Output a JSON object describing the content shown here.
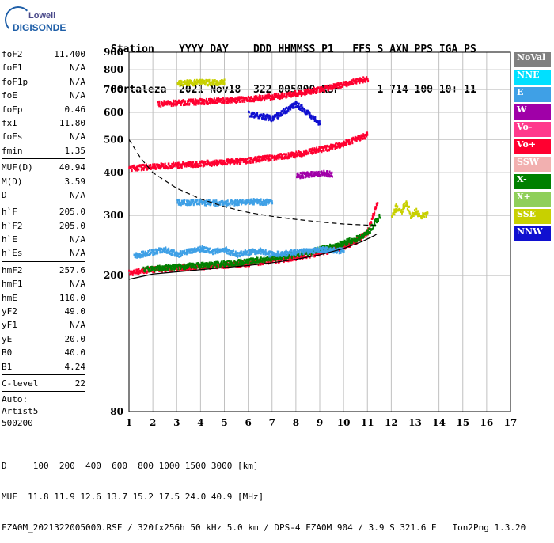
{
  "logo": {
    "line1": "Lowell",
    "line2": "DIGISONDE"
  },
  "header": {
    "line1": "Station    YYYY DAY    DDD HHMMSS P1   FFS S AXN PPS IGA PS",
    "line2": "Fortaleza  2021 Nov18  322 005000 RSF      1 714 100 10+ 11"
  },
  "params": {
    "group1": [
      {
        "k": "foF2",
        "v": "11.400"
      },
      {
        "k": "foF1",
        "v": "N/A"
      },
      {
        "k": "foF1p",
        "v": "N/A"
      },
      {
        "k": "foE",
        "v": "N/A"
      },
      {
        "k": "foEp",
        "v": "0.46"
      },
      {
        "k": "fxI",
        "v": "11.80"
      },
      {
        "k": "foEs",
        "v": "N/A"
      },
      {
        "k": "fmin",
        "v": "1.35"
      }
    ],
    "group2": [
      {
        "k": "MUF(D)",
        "v": "40.94"
      },
      {
        "k": "M(D)",
        "v": "3.59"
      },
      {
        "k": "D",
        "v": "N/A"
      }
    ],
    "group3": [
      {
        "k": "h`F",
        "v": "205.0"
      },
      {
        "k": "h`F2",
        "v": "205.0"
      },
      {
        "k": "h`E",
        "v": "N/A"
      },
      {
        "k": "h`Es",
        "v": "N/A"
      }
    ],
    "group4": [
      {
        "k": "hmF2",
        "v": "257.6"
      },
      {
        "k": "hmF1",
        "v": "N/A"
      },
      {
        "k": "hmE",
        "v": "110.0"
      },
      {
        "k": "yF2",
        "v": "49.0"
      },
      {
        "k": "yF1",
        "v": "N/A"
      },
      {
        "k": "yE",
        "v": "20.0"
      },
      {
        "k": "B0",
        "v": "40.0"
      },
      {
        "k": "B1",
        "v": "4.24"
      }
    ],
    "clevel": {
      "k": "C-level",
      "v": "22"
    },
    "auto": [
      "Auto:",
      "Artist5",
      "500200"
    ]
  },
  "legend": [
    {
      "label": "NoVal",
      "color": "#808080",
      "text": "#ffffff"
    },
    {
      "label": "NNE",
      "color": "#00e0ff",
      "text": "#ffffff"
    },
    {
      "label": "E",
      "color": "#3fa0e6",
      "text": "#ffffff"
    },
    {
      "label": "W",
      "color": "#a000a8",
      "text": "#ffffff"
    },
    {
      "label": "Vo-",
      "color": "#ff3a8c",
      "text": "#ffffff"
    },
    {
      "label": "Vo+",
      "color": "#ff0030",
      "text": "#ffffff"
    },
    {
      "label": "SSW",
      "color": "#f2b0b0",
      "text": "#ffffff"
    },
    {
      "label": "X-",
      "color": "#008000",
      "text": "#ffffff"
    },
    {
      "label": "X+",
      "color": "#8fcf5a",
      "text": "#ffffff"
    },
    {
      "label": "SSE",
      "color": "#c8d000",
      "text": "#ffffff"
    },
    {
      "label": "NNW",
      "color": "#1010d0",
      "text": "#ffffff"
    }
  ],
  "footer": {
    "line1": "D     100  200  400  600  800 1000 1500 3000 [km]",
    "line2": "MUF  11.8 11.9 12.6 13.7 15.2 17.5 24.0 40.9 [MHz]",
    "line3": "FZA0M_2021322005000.RSF / 320fx256h 50 kHz 5.0 km / DPS-4 FZA0M 904 / 3.9 S 321.6 E   Ion2Png 1.3.20"
  },
  "chart_data": {
    "type": "scatter",
    "xlim": [
      1,
      17
    ],
    "ylim": [
      80,
      900
    ],
    "y_scale": "log",
    "x_ticks": [
      1,
      2,
      3,
      4,
      5,
      6,
      7,
      8,
      9,
      10,
      11,
      12,
      13,
      14,
      15,
      16,
      17
    ],
    "y_ticks": [
      80,
      200,
      300,
      400,
      500,
      600,
      700,
      800,
      900
    ],
    "grid": true,
    "traces": [
      {
        "name": "Vo+",
        "x": [
          1.0,
          1.5,
          2.0,
          3.0,
          4.0,
          5.0,
          6.0,
          7.0,
          8.0,
          9.0,
          10.0,
          10.5,
          11.0,
          11.2,
          11.4
        ],
        "y": [
          205,
          208,
          210,
          212,
          214,
          216,
          219,
          223,
          228,
          235,
          245,
          255,
          270,
          300,
          330
        ]
      },
      {
        "name": "X-",
        "x": [
          1.6,
          2.5,
          3.5,
          4.5,
          5.5,
          6.5,
          7.5,
          8.5,
          9.5,
          10.5,
          11.0,
          11.5
        ],
        "y": [
          210,
          212,
          215,
          217,
          220,
          224,
          229,
          236,
          245,
          258,
          270,
          300
        ]
      },
      {
        "name": "Vo+",
        "x": [
          1.0,
          2.0,
          3.0,
          4.0,
          5.0,
          6.0,
          7.0,
          8.0,
          9.0,
          10.0,
          11.0
        ],
        "y": [
          415,
          420,
          424,
          428,
          432,
          438,
          446,
          456,
          470,
          490,
          520
        ]
      },
      {
        "name": "Vo+",
        "x": [
          2.2,
          3.0,
          4.0,
          5.0,
          6.0,
          7.0,
          8.0,
          9.0,
          10.0,
          11.0
        ],
        "y": [
          640,
          645,
          650,
          655,
          662,
          672,
          686,
          705,
          730,
          760
        ]
      },
      {
        "name": "E",
        "x": [
          1.2,
          1.8,
          2.5,
          3.0,
          3.5,
          4.0,
          4.5,
          5.0,
          5.5,
          6.0,
          6.5,
          7.0,
          8.0,
          9.0,
          10.0
        ],
        "y": [
          230,
          235,
          240,
          232,
          238,
          242,
          236,
          240,
          232,
          236,
          238,
          232,
          236,
          240,
          238
        ]
      },
      {
        "name": "E",
        "x": [
          3.0,
          4.0,
          5.0,
          6.0,
          7.0
        ],
        "y": [
          330,
          330,
          328,
          332,
          330
        ]
      },
      {
        "name": "SSE",
        "x": [
          12.0,
          12.2,
          12.4,
          12.6,
          12.8,
          13.0,
          13.2,
          13.5
        ],
        "y": [
          300,
          320,
          310,
          330,
          300,
          310,
          300,
          305
        ]
      },
      {
        "name": "SSE",
        "x": [
          3.0,
          3.5,
          4.0,
          4.5,
          5.0
        ],
        "y": [
          735,
          738,
          740,
          738,
          742
        ]
      },
      {
        "name": "W",
        "x": [
          8.0,
          8.5,
          9.0,
          9.5
        ],
        "y": [
          395,
          398,
          402,
          398
        ]
      },
      {
        "name": "NNW",
        "x": [
          6.0,
          7.0,
          8.0,
          9.0
        ],
        "y": [
          600,
          580,
          640,
          560
        ]
      }
    ],
    "profile_curve": {
      "x": [
        1.0,
        2,
        3,
        4,
        5,
        6,
        7,
        8,
        9,
        10,
        10.8,
        11.3,
        11.4
      ],
      "y": [
        195,
        202,
        205,
        208,
        211,
        214,
        218,
        223,
        230,
        240,
        252,
        262,
        265
      ]
    },
    "muf_curve": {
      "x": [
        1.0,
        1.5,
        2,
        3,
        4,
        5,
        6,
        7,
        8,
        9,
        10,
        11.4
      ],
      "y": [
        500,
        440,
        400,
        360,
        335,
        318,
        306,
        298,
        292,
        287,
        283,
        280
      ]
    }
  }
}
